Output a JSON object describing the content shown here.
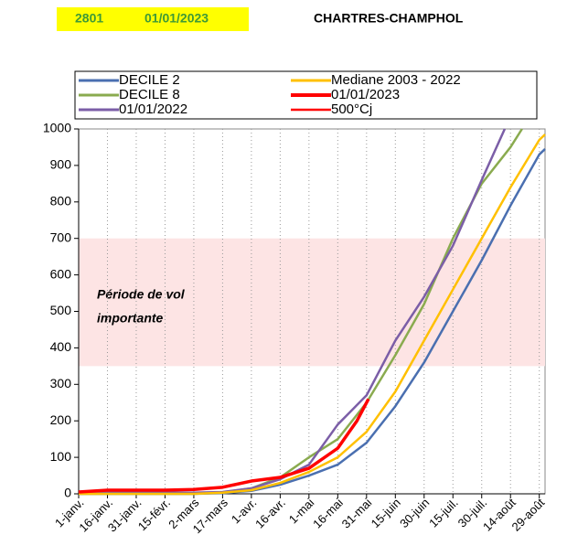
{
  "header": {
    "code": "2801",
    "date": "01/01/2023",
    "station": "CHARTRES-CHAMPHOL"
  },
  "chart_data": {
    "type": "line",
    "annotation": [
      "Période de vol",
      "importante"
    ],
    "band": {
      "ylim": [
        350,
        700
      ],
      "color": "#fde4e4"
    },
    "xlim": [
      0,
      243
    ],
    "xticks": [
      {
        "value": 0,
        "label": "1-janv."
      },
      {
        "value": 15,
        "label": "16-janv."
      },
      {
        "value": 30,
        "label": "31-janv."
      },
      {
        "value": 45,
        "label": "15-févr."
      },
      {
        "value": 60,
        "label": "2-mars"
      },
      {
        "value": 75,
        "label": "17-mars"
      },
      {
        "value": 90,
        "label": "1-avr."
      },
      {
        "value": 105,
        "label": "16-avr."
      },
      {
        "value": 120,
        "label": "1-mai"
      },
      {
        "value": 135,
        "label": "16-mai"
      },
      {
        "value": 150,
        "label": "31-mai"
      },
      {
        "value": 165,
        "label": "15-juin"
      },
      {
        "value": 180,
        "label": "30-juin"
      },
      {
        "value": 195,
        "label": "15-juil."
      },
      {
        "value": 210,
        "label": "30-juil."
      },
      {
        "value": 225,
        "label": "14-août"
      },
      {
        "value": 240,
        "label": "29-août"
      }
    ],
    "ylim": [
      0,
      1000
    ],
    "yticks": [
      0,
      100,
      200,
      300,
      400,
      500,
      600,
      700,
      800,
      900,
      1000
    ],
    "series": [
      {
        "name": "DECILE 2",
        "color": "#4a6fb0",
        "width": 2.5,
        "x": [
          0,
          15,
          30,
          45,
          60,
          75,
          90,
          105,
          120,
          135,
          150,
          165,
          180,
          195,
          210,
          225,
          240,
          243
        ],
        "values": [
          0,
          0,
          0,
          0,
          0,
          2,
          8,
          25,
          50,
          80,
          140,
          240,
          360,
          500,
          640,
          790,
          930,
          945
        ]
      },
      {
        "name": "Mediane 2003 - 2022",
        "color": "#ffc000",
        "width": 2.5,
        "x": [
          0,
          15,
          30,
          45,
          60,
          75,
          90,
          105,
          120,
          135,
          150,
          165,
          180,
          195,
          210,
          225,
          240,
          243
        ],
        "values": [
          0,
          0,
          0,
          0,
          0,
          3,
          10,
          30,
          60,
          100,
          170,
          280,
          420,
          560,
          700,
          840,
          970,
          985
        ]
      },
      {
        "name": "DECILE 8",
        "color": "#8aab4f",
        "width": 2.5,
        "x": [
          0,
          15,
          30,
          45,
          60,
          75,
          90,
          105,
          120,
          135,
          150,
          165,
          180,
          195,
          210,
          225,
          231
        ],
        "values": [
          0,
          0,
          0,
          0,
          0,
          4,
          15,
          45,
          100,
          150,
          250,
          380,
          520,
          700,
          850,
          950,
          1000
        ]
      },
      {
        "name": "01/01/2023",
        "color": "#ff0000",
        "width": 3.5,
        "x": [
          0,
          15,
          30,
          45,
          60,
          75,
          90,
          105,
          120,
          135,
          145,
          151
        ],
        "values": [
          5,
          10,
          10,
          10,
          12,
          18,
          35,
          45,
          70,
          125,
          200,
          260
        ]
      },
      {
        "name": "01/01/2022",
        "color": "#7b5ea7",
        "width": 2.5,
        "x": [
          0,
          15,
          30,
          45,
          60,
          75,
          90,
          105,
          120,
          135,
          150,
          165,
          180,
          195,
          210,
          222
        ],
        "values": [
          0,
          3,
          3,
          3,
          3,
          5,
          15,
          40,
          80,
          190,
          270,
          420,
          540,
          680,
          860,
          1000
        ]
      },
      {
        "name": "500°Cj",
        "color": "#ff0000",
        "width": 2,
        "x": [],
        "values": []
      }
    ]
  }
}
